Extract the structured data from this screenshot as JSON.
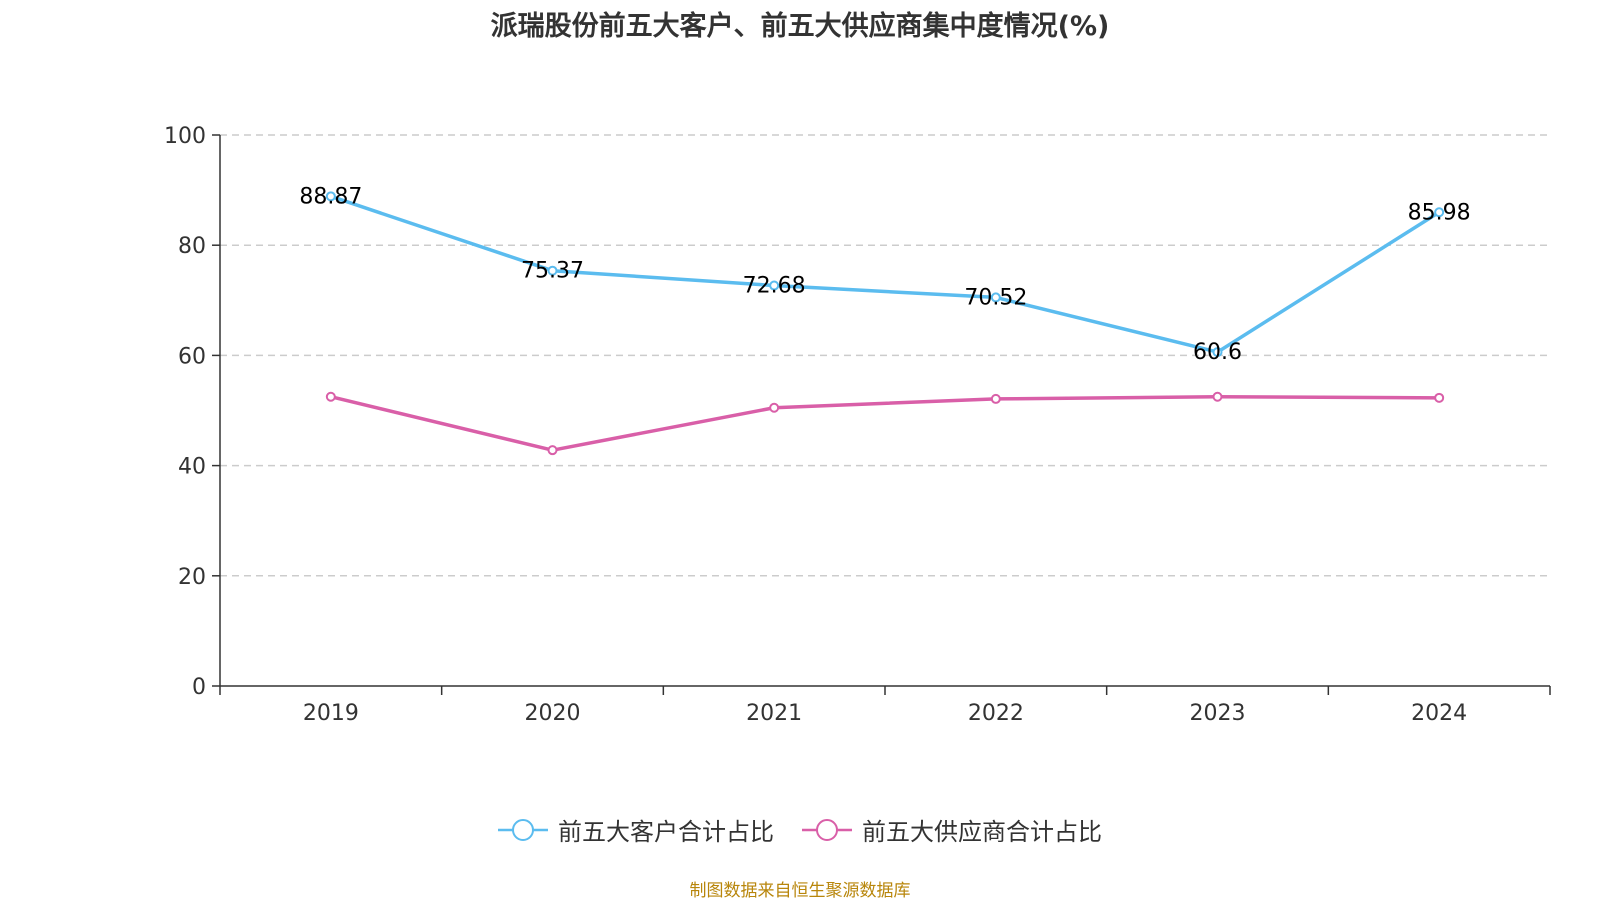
{
  "chart_data": {
    "type": "line",
    "title": "派瑞股份前五大客户、前五大供应商集中度情况(%)",
    "categories": [
      "2019",
      "2020",
      "2021",
      "2022",
      "2023",
      "2024"
    ],
    "series": [
      {
        "name": "前五大客户合计占比",
        "values": [
          88.87,
          75.37,
          72.68,
          70.52,
          60.6,
          85.98
        ],
        "color": "#5bbcef",
        "labels": true
      },
      {
        "name": "前五大供应商合计占比",
        "values": [
          52.5,
          42.8,
          50.5,
          52.1,
          52.5,
          52.3
        ],
        "color": "#d95fa8",
        "labels": false
      }
    ],
    "ylim": [
      0,
      100
    ],
    "yticks": [
      0,
      20,
      40,
      60,
      80,
      100
    ],
    "grid": true,
    "legend": "bottom"
  },
  "source": "制图数据来自恒生聚源数据库"
}
